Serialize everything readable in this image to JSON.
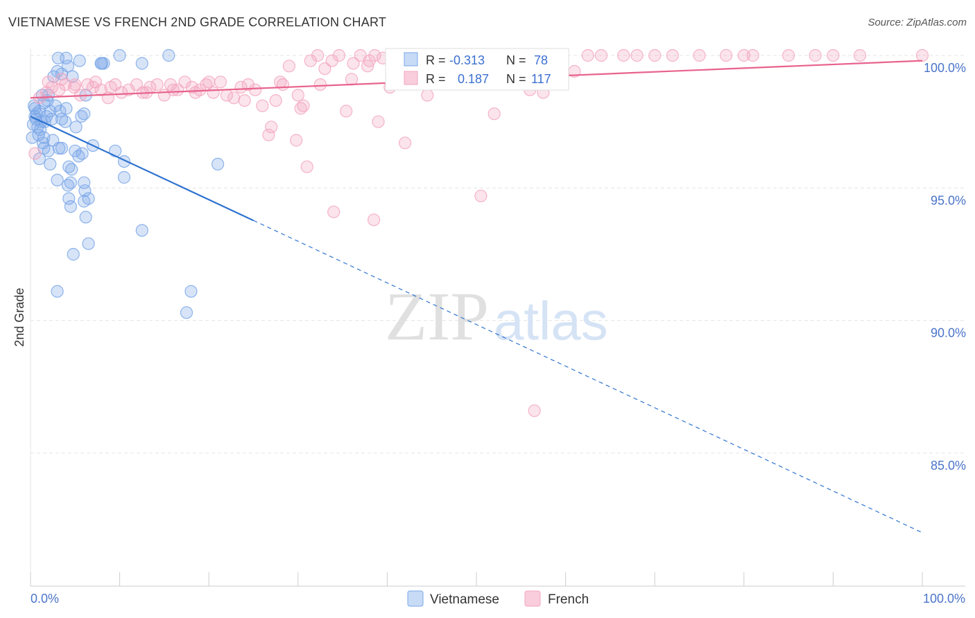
{
  "title": "VIETNAMESE VS FRENCH 2ND GRADE CORRELATION CHART",
  "source": "Source: ZipAtlas.com",
  "watermark": {
    "zip": "ZIP",
    "atlas": "atlas"
  },
  "chart_data": {
    "type": "scatter",
    "title": "VIETNAMESE VS FRENCH 2ND GRADE CORRELATION CHART",
    "xlabel": "",
    "ylabel": "2nd Grade",
    "xlim": [
      0,
      100
    ],
    "ylim": [
      80.5,
      100.8
    ],
    "x_tick_labels": [
      "0.0%",
      "100.0%"
    ],
    "y_ticks": [
      {
        "value": 100.0,
        "label": "100.0%"
      },
      {
        "value": 95.0,
        "label": "95.0%"
      },
      {
        "value": 90.0,
        "label": "90.0%"
      },
      {
        "value": 85.0,
        "label": "85.0%"
      }
    ],
    "grid": true,
    "legend_position": "top-center",
    "series": [
      {
        "name": "Vietnamese",
        "color": "#7aa7e8",
        "line_color": "#2f73d0",
        "R": "-0.313",
        "N": "78",
        "R_label": "R =",
        "N_label": "N =",
        "trend": {
          "x_start": 0,
          "y_start": 97.7,
          "x_solid_end": 25,
          "x_end": 100,
          "y_end": 82.0
        },
        "points": [
          [
            3.1,
            99.9
          ],
          [
            4.0,
            99.9
          ],
          [
            5.5,
            99.8
          ],
          [
            8.0,
            99.7
          ],
          [
            8.2,
            99.7
          ],
          [
            10.0,
            100.0
          ],
          [
            12.5,
            99.7
          ],
          [
            15.5,
            100.0
          ],
          [
            4.2,
            99.6
          ],
          [
            3.0,
            99.4
          ],
          [
            3.5,
            99.3
          ],
          [
            1.3,
            98.5
          ],
          [
            2.0,
            98.5
          ],
          [
            6.2,
            98.5
          ],
          [
            1.5,
            98.2
          ],
          [
            0.5,
            98.0
          ],
          [
            1.0,
            97.9
          ],
          [
            2.2,
            97.9
          ],
          [
            3.3,
            97.9
          ],
          [
            4.0,
            98.0
          ],
          [
            0.5,
            97.7
          ],
          [
            1.8,
            97.7
          ],
          [
            3.5,
            97.6
          ],
          [
            6.0,
            97.8
          ],
          [
            0.6,
            97.6
          ],
          [
            1.2,
            97.5
          ],
          [
            0.8,
            97.3
          ],
          [
            5.1,
            97.3
          ],
          [
            0.9,
            97.0
          ],
          [
            1.5,
            96.9
          ],
          [
            2.5,
            96.8
          ],
          [
            7.0,
            96.6
          ],
          [
            1.5,
            96.5
          ],
          [
            2.0,
            96.4
          ],
          [
            3.5,
            96.5
          ],
          [
            5.0,
            96.4
          ],
          [
            5.4,
            96.2
          ],
          [
            5.8,
            96.3
          ],
          [
            9.5,
            96.4
          ],
          [
            10.5,
            96.0
          ],
          [
            1.0,
            96.1
          ],
          [
            2.2,
            95.9
          ],
          [
            4.3,
            95.8
          ],
          [
            4.6,
            95.7
          ],
          [
            21.0,
            95.9
          ],
          [
            3.0,
            95.3
          ],
          [
            4.5,
            95.2
          ],
          [
            6.0,
            95.2
          ],
          [
            10.5,
            95.4
          ],
          [
            4.2,
            95.1
          ],
          [
            6.1,
            94.9
          ],
          [
            4.3,
            94.6
          ],
          [
            6.5,
            94.6
          ],
          [
            6.0,
            94.5
          ],
          [
            4.5,
            94.3
          ],
          [
            6.2,
            93.9
          ],
          [
            12.5,
            93.4
          ],
          [
            6.5,
            92.9
          ],
          [
            4.8,
            92.5
          ],
          [
            3.0,
            91.1
          ],
          [
            18.0,
            91.1
          ],
          [
            17.5,
            90.3
          ],
          [
            0.4,
            98.1
          ],
          [
            0.7,
            97.8
          ],
          [
            1.6,
            97.5
          ],
          [
            1.1,
            97.2
          ],
          [
            2.8,
            98.1
          ],
          [
            3.9,
            97.5
          ],
          [
            2.6,
            99.2
          ],
          [
            1.9,
            98.3
          ],
          [
            0.3,
            97.4
          ],
          [
            4.7,
            99.2
          ],
          [
            7.9,
            99.7
          ],
          [
            2.4,
            97.6
          ],
          [
            1.4,
            96.7
          ],
          [
            5.7,
            97.7
          ],
          [
            3.2,
            96.5
          ],
          [
            0.2,
            96.9
          ]
        ]
      },
      {
        "name": "French",
        "color": "#f3a7bf",
        "line_color": "#e8628c",
        "R": "0.187",
        "N": "117",
        "R_label": "R =",
        "N_label": "N =",
        "trend": {
          "x_start": 0,
          "y_start": 98.4,
          "x_end": 100,
          "y_end": 99.8
        },
        "points": [
          [
            0.5,
            96.3
          ],
          [
            1.0,
            98.4
          ],
          [
            1.8,
            98.6
          ],
          [
            2.4,
            98.8
          ],
          [
            3.2,
            98.7
          ],
          [
            3.9,
            98.9
          ],
          [
            4.9,
            98.8
          ],
          [
            5.6,
            98.5
          ],
          [
            6.4,
            98.9
          ],
          [
            7.3,
            99.0
          ],
          [
            7.9,
            98.7
          ],
          [
            8.7,
            98.4
          ],
          [
            9.5,
            98.9
          ],
          [
            10.2,
            98.6
          ],
          [
            11.0,
            98.7
          ],
          [
            11.9,
            98.9
          ],
          [
            12.6,
            98.6
          ],
          [
            13.4,
            98.8
          ],
          [
            14.2,
            98.9
          ],
          [
            15.0,
            98.5
          ],
          [
            15.7,
            98.9
          ],
          [
            16.5,
            98.7
          ],
          [
            17.3,
            99.0
          ],
          [
            18.1,
            98.8
          ],
          [
            19.0,
            98.7
          ],
          [
            19.7,
            98.9
          ],
          [
            20.5,
            98.6
          ],
          [
            21.3,
            99.0
          ],
          [
            22.0,
            98.5
          ],
          [
            22.8,
            98.4
          ],
          [
            23.6,
            98.8
          ],
          [
            24.4,
            98.9
          ],
          [
            25.2,
            98.7
          ],
          [
            26.0,
            98.1
          ],
          [
            26.7,
            97.0
          ],
          [
            27.5,
            98.3
          ],
          [
            28.3,
            98.9
          ],
          [
            29.0,
            99.6
          ],
          [
            29.8,
            96.8
          ],
          [
            30.6,
            98.1
          ],
          [
            31.4,
            99.8
          ],
          [
            32.2,
            100.0
          ],
          [
            33.0,
            99.5
          ],
          [
            33.8,
            99.8
          ],
          [
            34.6,
            100.0
          ],
          [
            35.4,
            97.9
          ],
          [
            36.2,
            99.7
          ],
          [
            37.0,
            100.0
          ],
          [
            37.8,
            99.6
          ],
          [
            38.6,
            100.0
          ],
          [
            39.5,
            99.9
          ],
          [
            40.3,
            98.8
          ],
          [
            41.0,
            99.8
          ],
          [
            41.8,
            100.0
          ],
          [
            42.6,
            100.0
          ],
          [
            43.4,
            99.9
          ],
          [
            44.2,
            99.6
          ],
          [
            45.0,
            100.0
          ],
          [
            45.8,
            99.8
          ],
          [
            46.5,
            100.0
          ],
          [
            47.3,
            99.5
          ],
          [
            48.1,
            100.0
          ],
          [
            49.0,
            99.7
          ],
          [
            50.0,
            100.0
          ],
          [
            51.5,
            100.0
          ],
          [
            53.0,
            99.9
          ],
          [
            55.0,
            100.0
          ],
          [
            57.0,
            100.0
          ],
          [
            59.0,
            100.0
          ],
          [
            62.5,
            100.0
          ],
          [
            64.0,
            100.0
          ],
          [
            66.5,
            100.0
          ],
          [
            68.0,
            100.0
          ],
          [
            70.0,
            100.0
          ],
          [
            72.0,
            100.0
          ],
          [
            75.0,
            100.0
          ],
          [
            78.0,
            100.0
          ],
          [
            80.0,
            100.0
          ],
          [
            81.0,
            100.0
          ],
          [
            85.0,
            100.0
          ],
          [
            88.0,
            100.0
          ],
          [
            90.0,
            100.0
          ],
          [
            93.0,
            100.0
          ],
          [
            100.0,
            100.0
          ],
          [
            2.0,
            99.0
          ],
          [
            3.5,
            99.1
          ],
          [
            5.0,
            98.9
          ],
          [
            7.0,
            98.8
          ],
          [
            9.0,
            98.8
          ],
          [
            13.0,
            98.6
          ],
          [
            16.0,
            98.7
          ],
          [
            18.5,
            98.6
          ],
          [
            20.0,
            99.0
          ],
          [
            24.0,
            98.3
          ],
          [
            27.0,
            97.3
          ],
          [
            28.0,
            99.0
          ],
          [
            30.0,
            98.5
          ],
          [
            31.0,
            95.8
          ],
          [
            32.5,
            98.9
          ],
          [
            34.0,
            94.1
          ],
          [
            36.0,
            99.1
          ],
          [
            38.0,
            99.8
          ],
          [
            39.0,
            97.5
          ],
          [
            41.5,
            99.6
          ],
          [
            43.0,
            99.9
          ],
          [
            44.5,
            98.5
          ],
          [
            46.0,
            99.2
          ],
          [
            38.5,
            93.8
          ],
          [
            42.0,
            96.7
          ],
          [
            50.5,
            94.7
          ],
          [
            52.0,
            97.8
          ],
          [
            56.0,
            98.7
          ],
          [
            57.5,
            98.6
          ],
          [
            59.5,
            99.2
          ],
          [
            61.0,
            99.4
          ],
          [
            54.5,
            99.9
          ],
          [
            30.3,
            98.0
          ],
          [
            56.5,
            86.6
          ]
        ]
      }
    ]
  }
}
